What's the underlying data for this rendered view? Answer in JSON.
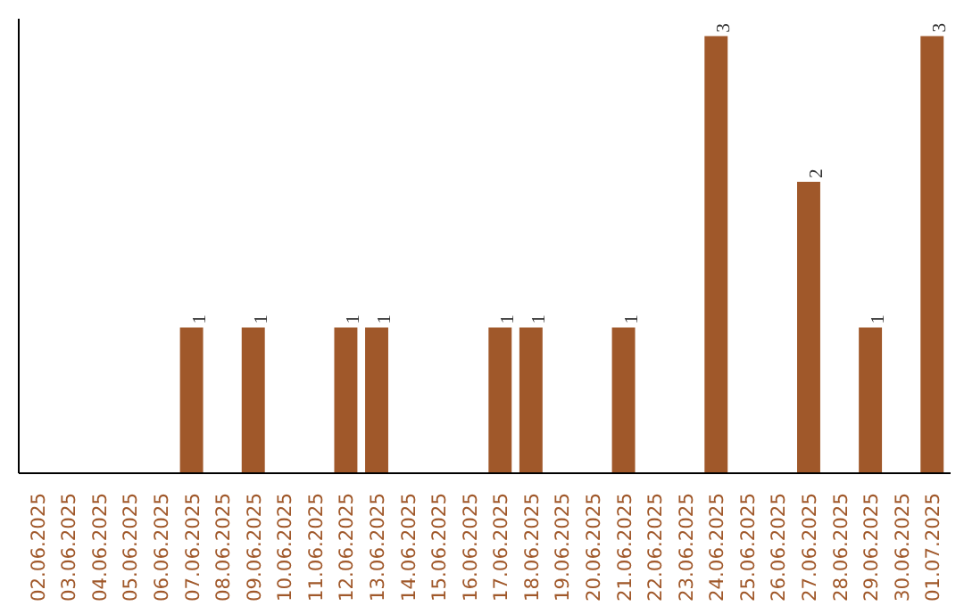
{
  "chart_data": {
    "type": "bar",
    "categories": [
      "02.06.2025",
      "03.06.2025",
      "04.06.2025",
      "05.06.2025",
      "06.06.2025",
      "07.06.2025",
      "08.06.2025",
      "09.06.2025",
      "10.06.2025",
      "11.06.2025",
      "12.06.2025",
      "13.06.2025",
      "14.06.2025",
      "15.06.2025",
      "16.06.2025",
      "17.06.2025",
      "18.06.2025",
      "19.06.2025",
      "20.06.2025",
      "21.06.2025",
      "22.06.2025",
      "23.06.2025",
      "24.06.2025",
      "25.06.2025",
      "26.06.2025",
      "27.06.2025",
      "28.06.2025",
      "29.06.2025",
      "30.06.2025",
      "01.07.2025"
    ],
    "values": [
      0,
      0,
      0,
      0,
      0,
      1,
      0,
      1,
      0,
      0,
      1,
      1,
      0,
      0,
      0,
      1,
      1,
      0,
      0,
      1,
      0,
      0,
      3,
      0,
      0,
      2,
      0,
      1,
      0,
      3
    ],
    "value_labels": [
      null,
      null,
      null,
      null,
      null,
      "1",
      null,
      "1",
      null,
      null,
      "1",
      "1",
      null,
      null,
      null,
      "1",
      "1",
      null,
      null,
      "1",
      null,
      null,
      "3",
      null,
      null,
      "2",
      null,
      "1",
      null,
      "3"
    ],
    "color": "#a0582a",
    "tick_labels": "x",
    "grid": false
  }
}
